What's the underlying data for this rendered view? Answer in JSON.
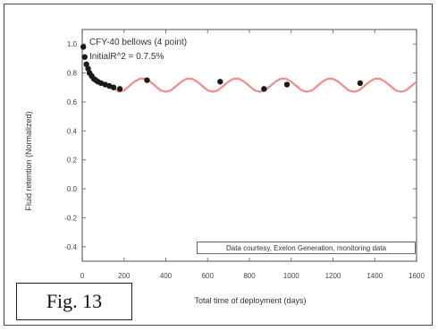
{
  "figure_label": "Fig. 13",
  "chart_data": {
    "type": "scatter",
    "annotation_lines": [
      "CFY-40 bellows (4 point)",
      "InitialR^2 = 0.7.5%"
    ],
    "legend": "Data courtesy, Exelon Generation, monitoring data",
    "xlabel": "Total time of deployment (days)",
    "ylabel": "Fluid retention (Normalized)",
    "xlim": [
      0,
      1600
    ],
    "ylim": [
      -0.5,
      1.1
    ],
    "xticks": [
      0,
      200,
      400,
      600,
      800,
      1000,
      1200,
      1400,
      1600
    ],
    "xtick_labels": [
      "0",
      "200",
      "400",
      "600",
      "800",
      "1000",
      "1200",
      "1400",
      "1600"
    ],
    "yticks": [
      1.0,
      0.8,
      0.6,
      0.4,
      0.2,
      0.0,
      -0.2,
      -0.4
    ],
    "ytick_labels": [
      "1.0",
      "0.8",
      "0.6",
      "0.4",
      "0.2",
      "0.0",
      "-0.2",
      "-0.4"
    ],
    "series": [
      {
        "kind": "points",
        "color": "#1a1a1a",
        "x": [
          5,
          12,
          20,
          28,
          35,
          45,
          55,
          65,
          75,
          90,
          110,
          130,
          150,
          180,
          310,
          660,
          870,
          980,
          1330
        ],
        "y": [
          0.98,
          0.91,
          0.86,
          0.83,
          0.8,
          0.78,
          0.76,
          0.75,
          0.74,
          0.73,
          0.72,
          0.71,
          0.7,
          0.69,
          0.75,
          0.74,
          0.69,
          0.72,
          0.73
        ]
      },
      {
        "kind": "line",
        "color": "#f28b8b",
        "x": [
          150,
          175,
          200,
          225,
          250,
          275,
          300,
          325,
          350,
          375,
          400,
          425,
          450,
          475,
          500,
          525,
          550,
          575,
          600,
          625,
          650,
          675,
          700,
          725,
          750,
          775,
          800,
          825,
          850,
          875,
          900,
          925,
          950,
          975,
          1000,
          1025,
          1050,
          1075,
          1100,
          1125,
          1150,
          1175,
          1200,
          1225,
          1250,
          1275,
          1300,
          1325,
          1350,
          1375,
          1400,
          1425,
          1450,
          1475,
          1500,
          1525,
          1550,
          1575,
          1600
        ],
        "y": [
          0.7,
          0.67,
          0.68,
          0.71,
          0.74,
          0.76,
          0.76,
          0.74,
          0.71,
          0.68,
          0.67,
          0.68,
          0.71,
          0.74,
          0.76,
          0.76,
          0.74,
          0.71,
          0.68,
          0.67,
          0.68,
          0.71,
          0.74,
          0.76,
          0.76,
          0.74,
          0.71,
          0.68,
          0.67,
          0.68,
          0.71,
          0.74,
          0.76,
          0.76,
          0.74,
          0.71,
          0.68,
          0.67,
          0.68,
          0.71,
          0.74,
          0.76,
          0.76,
          0.74,
          0.71,
          0.68,
          0.67,
          0.68,
          0.71,
          0.74,
          0.76,
          0.76,
          0.74,
          0.71,
          0.68,
          0.67,
          0.68,
          0.71,
          0.74
        ]
      }
    ]
  }
}
